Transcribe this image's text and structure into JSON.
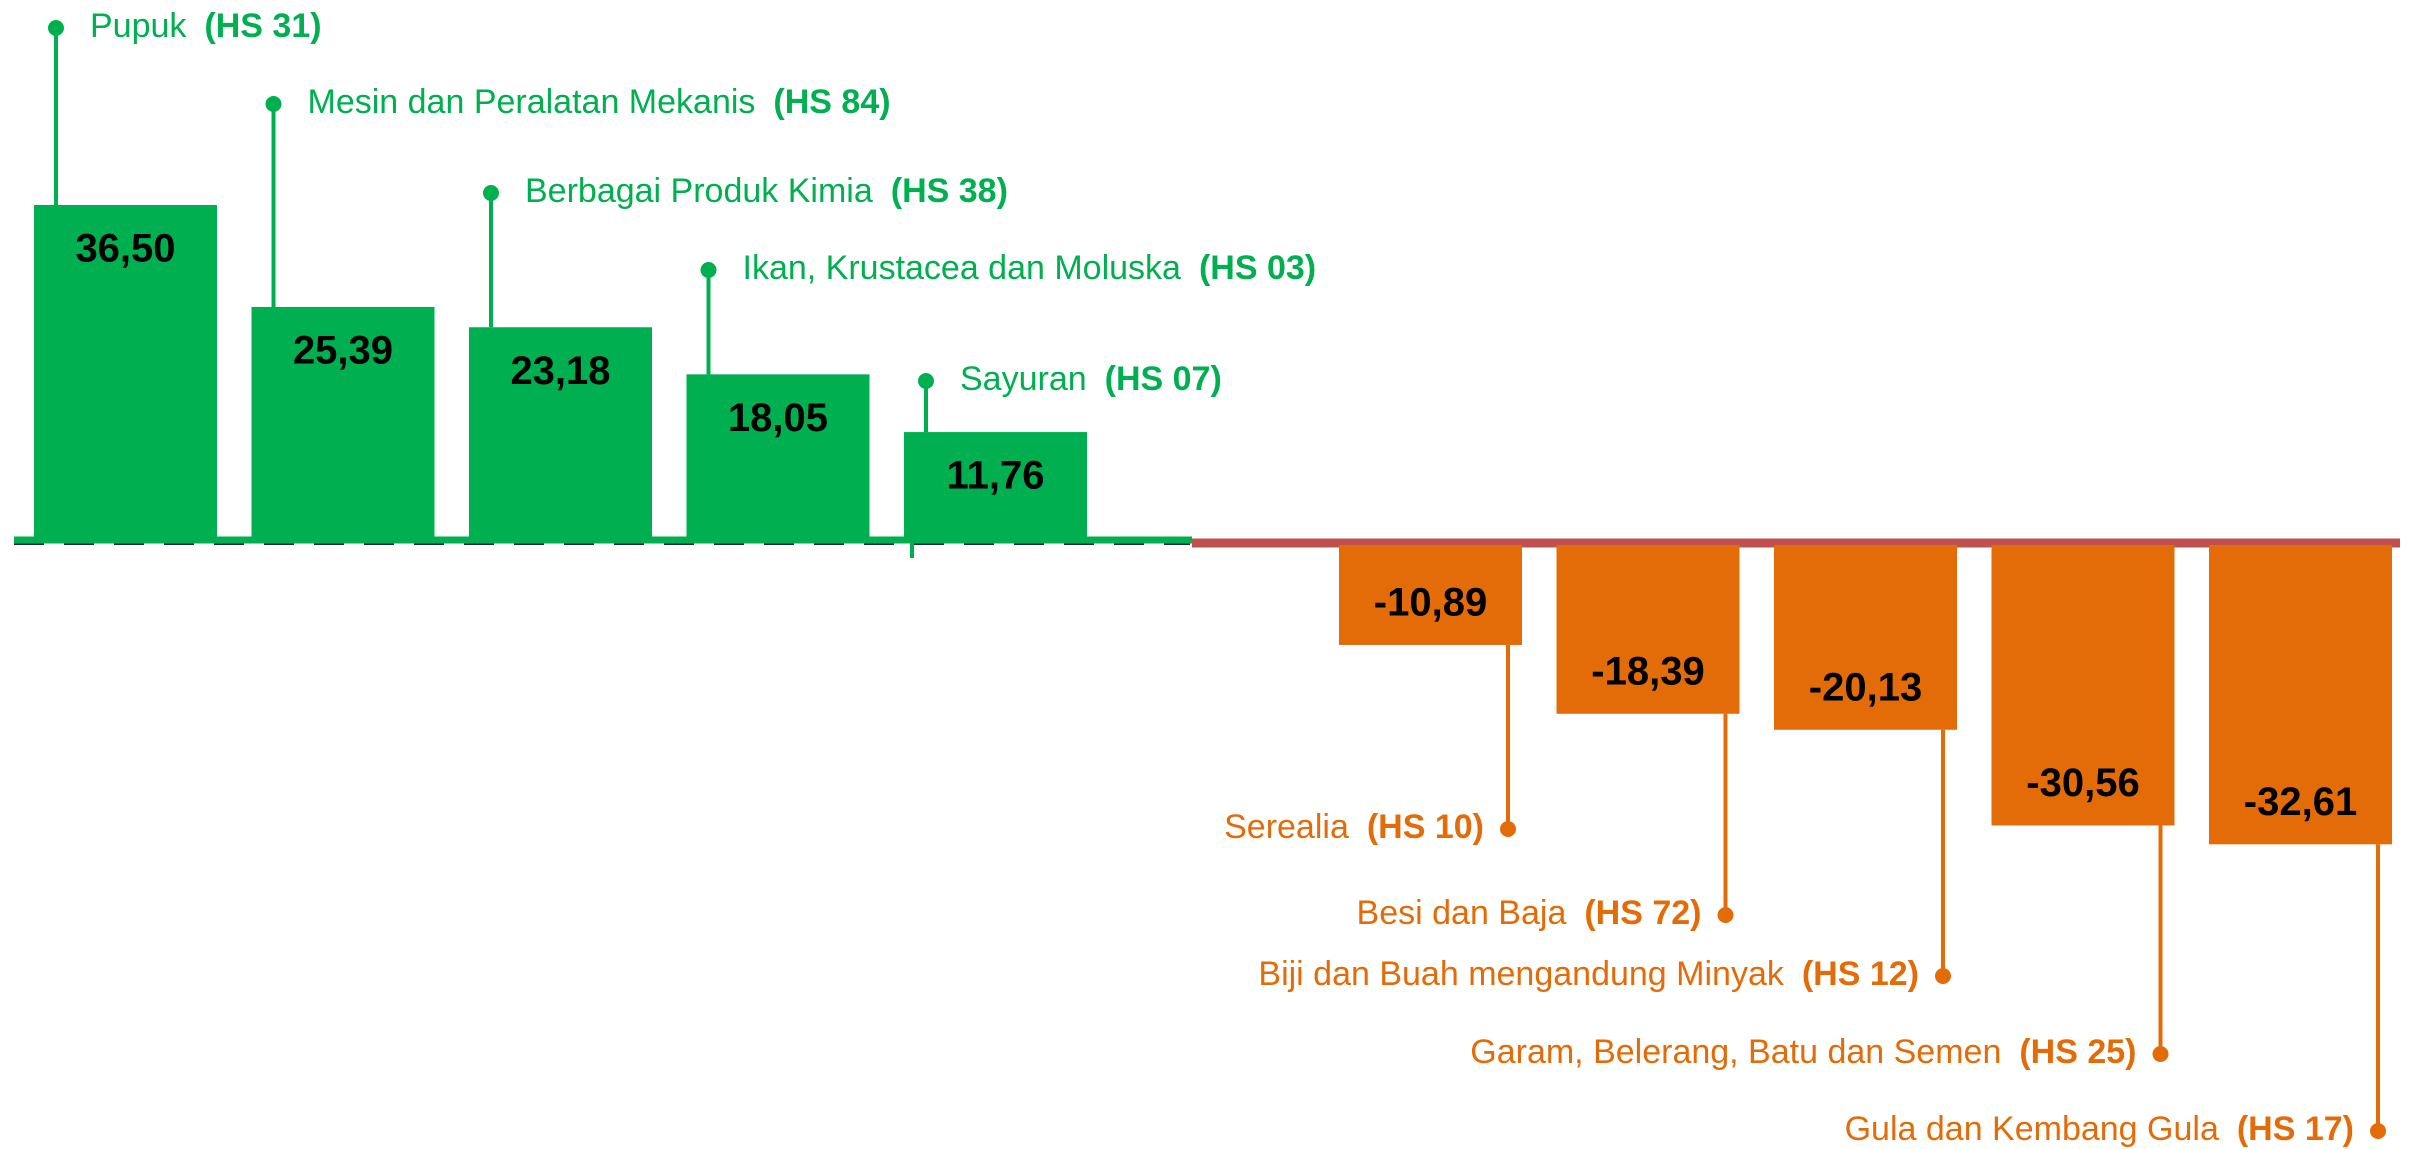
{
  "chart_data": {
    "type": "bar",
    "categories": [
      "Pupuk",
      "Mesin dan Peralatan Mekanis",
      "Berbagai Produk Kimia",
      "Ikan, Krustacea dan Moluska",
      "Sayuran",
      "Serealia",
      "Besi dan Baja",
      "Biji dan Buah mengandung Minyak",
      "Garam, Belerang, Batu dan Semen",
      "Gula dan Kembang Gula"
    ],
    "hs_codes": [
      "(HS 31)",
      "(HS 84)",
      "(HS 38)",
      "(HS 03)",
      "(HS 07)",
      "(HS 10)",
      "(HS 72)",
      "(HS 12)",
      "(HS 25)",
      "(HS 17)"
    ],
    "values": [
      36.5,
      25.39,
      23.18,
      18.05,
      11.76,
      -10.89,
      -18.39,
      -20.13,
      -30.56,
      -32.61
    ],
    "value_labels": [
      "36,50",
      "25,39",
      "23,18",
      "18,05",
      "11,76",
      "-10,89",
      "-18,39",
      "-20,13",
      "-30,56",
      "-32,61"
    ],
    "positive_color": "#00b050",
    "negative_color": "#e36c09"
  }
}
